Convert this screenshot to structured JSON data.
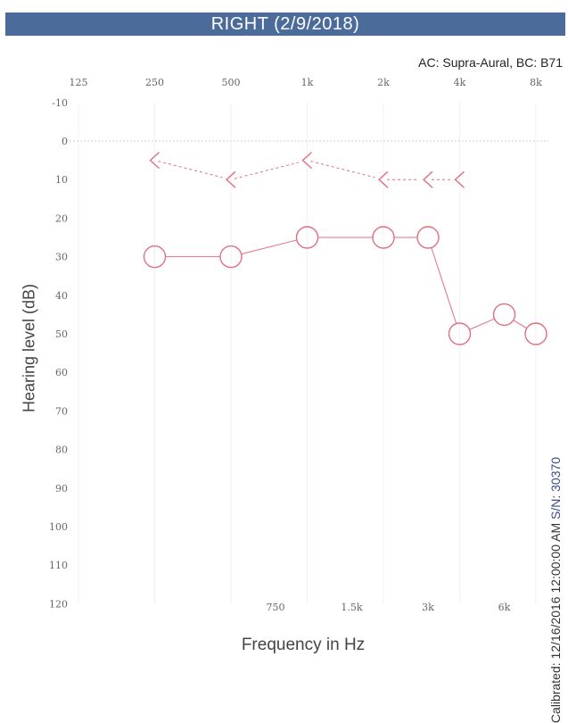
{
  "title": "RIGHT  (2/9/2018)",
  "subtitle": "AC: Supra-Aural, BC: B71",
  "calibration": {
    "text": "Calibrated: 12/16/2016 12:00:00 AM",
    "serial": "S/N: 30370"
  },
  "chart_data": {
    "type": "line",
    "title": "RIGHT  (2/9/2018)",
    "xlabel": "Frequency in Hz",
    "ylabel": "Hearing level (dB)",
    "x_scale": "log",
    "y_inverted": true,
    "ylim": [
      -10,
      120
    ],
    "y_ticks": [
      "-10",
      "0",
      "10",
      "20",
      "30",
      "40",
      "50",
      "60",
      "70",
      "80",
      "90",
      "100",
      "110",
      "120"
    ],
    "x_ticks_top": [
      {
        "hz": 125,
        "label": "125"
      },
      {
        "hz": 250,
        "label": "250"
      },
      {
        "hz": 500,
        "label": "500"
      },
      {
        "hz": 1000,
        "label": "1k"
      },
      {
        "hz": 2000,
        "label": "2k"
      },
      {
        "hz": 4000,
        "label": "4k"
      },
      {
        "hz": 8000,
        "label": "8k"
      }
    ],
    "x_ticks_bottom": [
      {
        "hz": 750,
        "label": "750"
      },
      {
        "hz": 1500,
        "label": "1.5k"
      },
      {
        "hz": 3000,
        "label": "3k"
      },
      {
        "hz": 6000,
        "label": "6k"
      }
    ],
    "series": [
      {
        "marker": "bc-bracket",
        "color": "#e07080",
        "x": [
          250,
          500,
          1000,
          2000,
          3000,
          4000
        ],
        "y": [
          5,
          10,
          5,
          10,
          10,
          10
        ]
      },
      {
        "marker": "circle",
        "color": "#e07080",
        "x": [
          250,
          500,
          1000,
          2000,
          3000,
          4000,
          6000,
          8000
        ],
        "y": [
          30,
          30,
          25,
          25,
          25,
          50,
          45,
          50
        ]
      }
    ]
  }
}
